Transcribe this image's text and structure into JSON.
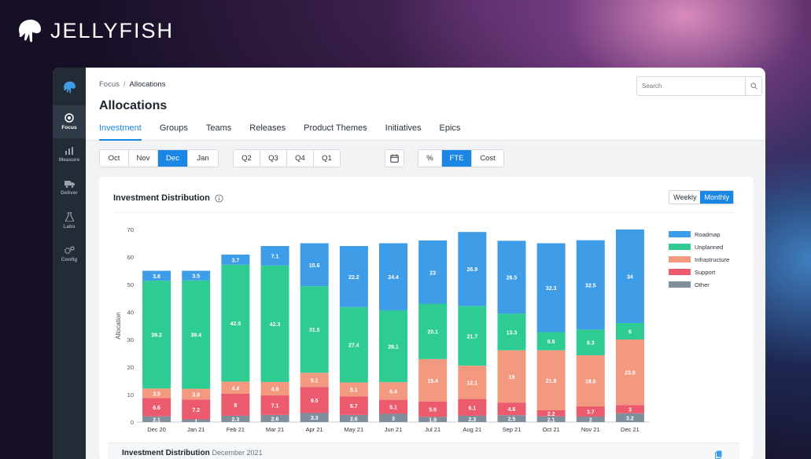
{
  "brand": {
    "name": "JELLYFISH"
  },
  "rail": {
    "items": [
      {
        "label": "Focus",
        "icon": "focus-icon",
        "active": true
      },
      {
        "label": "Measure",
        "icon": "bar-chart-icon",
        "active": false
      },
      {
        "label": "Deliver",
        "icon": "truck-icon",
        "active": false
      },
      {
        "label": "Labs",
        "icon": "flask-icon",
        "active": false
      },
      {
        "label": "Config",
        "icon": "gears-icon",
        "active": false
      }
    ]
  },
  "header": {
    "breadcrumb": {
      "parent": "Focus",
      "separator": "/",
      "current": "Allocations"
    },
    "title": "Allocations",
    "search_placeholder": "Search",
    "tabs": [
      "Investment",
      "Groups",
      "Teams",
      "Releases",
      "Product Themes",
      "Initiatives",
      "Epics"
    ],
    "active_tab": "Investment"
  },
  "filters": {
    "months": [
      "Oct",
      "Nov",
      "Dec",
      "Jan"
    ],
    "active_month": "Dec",
    "quarters": [
      "Q2",
      "Q3",
      "Q4",
      "Q1"
    ],
    "units": [
      "%",
      "FTE",
      "Cost"
    ],
    "active_unit": "FTE"
  },
  "panel": {
    "title": "Investment Distribution",
    "granularity": [
      "Weekly",
      "Monthly"
    ],
    "active_granularity": "Monthly"
  },
  "bottom": {
    "title": "Investment Distribution",
    "subtitle": "December 2021"
  },
  "colors": {
    "accent": "#1b86e4",
    "rail": "#232b35"
  },
  "chart_data": {
    "type": "bar",
    "stacked": true,
    "categories": [
      "Dec 20",
      "Jan 21",
      "Feb 21",
      "Mar 21",
      "Apr 21",
      "May 21",
      "Jun 21",
      "Jul 21",
      "Aug 21",
      "Sep 21",
      "Oct 21",
      "Nov 21",
      "Dec 21"
    ],
    "ylabel": "Allocation",
    "ylim": [
      0,
      70
    ],
    "yticks": [
      0,
      10,
      20,
      30,
      40,
      50,
      60,
      70
    ],
    "legend_position": "right",
    "series": [
      {
        "name": "Other",
        "color": "#7f909c",
        "values": [
          2.1,
          1,
          2.3,
          2.6,
          3.3,
          2.6,
          3,
          1.9,
          2.3,
          2.5,
          2.1,
          2,
          3.2
        ]
      },
      {
        "name": "Support",
        "color": "#ec5a6e",
        "values": [
          6.6,
          7.2,
          8,
          7.1,
          9.5,
          6.7,
          5.1,
          5.6,
          6.1,
          4.6,
          2.2,
          3.7,
          3
        ]
      },
      {
        "name": "Infrastructure",
        "color": "#f3997f",
        "values": [
          3.5,
          3.9,
          4.4,
          4.9,
          5.1,
          5.1,
          6.4,
          15.4,
          12.1,
          19,
          21.8,
          18.6,
          23.8
        ]
      },
      {
        "name": "Unplanned",
        "color": "#2ecc93",
        "values": [
          39.2,
          39.4,
          42.5,
          42.3,
          31.5,
          27.4,
          26.1,
          20.1,
          21.7,
          13.3,
          6.6,
          9.3,
          6
        ]
      },
      {
        "name": "Roadmap",
        "color": "#3e9de6",
        "values": [
          3.6,
          3.5,
          3.7,
          7.1,
          15.6,
          22.2,
          24.4,
          23,
          26.9,
          26.5,
          32.3,
          32.5,
          34
        ]
      }
    ],
    "legend_order": [
      "Roadmap",
      "Unplanned",
      "Infrastructure",
      "Support",
      "Other"
    ]
  }
}
